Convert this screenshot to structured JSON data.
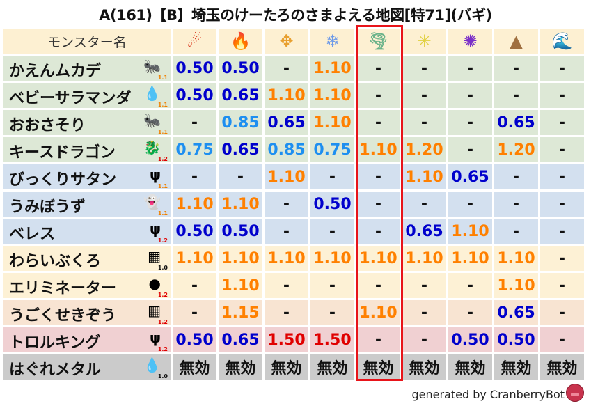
{
  "title": "A(161)【B】埼玉のけーたろのさまよえる地図[特71](バギ)",
  "header": {
    "name_col": "モンスター名",
    "elements": [
      {
        "icon": "fire-ball-icon",
        "glyph": "☄",
        "color": "#d8341a"
      },
      {
        "icon": "flame-icon",
        "glyph": "🔥",
        "color": "#e8561c"
      },
      {
        "icon": "explosion-icon",
        "glyph": "✥",
        "color": "#e8a030"
      },
      {
        "icon": "ice-icon",
        "glyph": "❄",
        "color": "#6f9be8"
      },
      {
        "icon": "tornado-icon",
        "glyph": "🌪",
        "color": "#6bb38a"
      },
      {
        "icon": "lightning-icon",
        "glyph": "✳",
        "color": "#e0d040"
      },
      {
        "icon": "darkness-icon",
        "glyph": "✺",
        "color": "#7a2ec8"
      },
      {
        "icon": "earth-icon",
        "glyph": "▲",
        "color": "#a07040"
      },
      {
        "icon": "water-icon",
        "glyph": "🌊",
        "color": "#2a8ad8"
      }
    ]
  },
  "highlight_column": "tornado-icon",
  "colors": {
    "low": "#0000cc",
    "mid": "#1e8ff0",
    "high": "#ff8000",
    "very_high": "#e00000",
    "none": "#111111"
  },
  "rows": [
    {
      "name": "かえんムカデ",
      "icon": "insect-icon",
      "glyph": "🐜",
      "ver": "1.1",
      "bg": "#dde8d6",
      "values": [
        "0.50",
        "0.50",
        "-",
        "1.10",
        "-",
        "-",
        "-",
        "-",
        "-"
      ]
    },
    {
      "name": "ベビーサラマンダ",
      "icon": "water-drop-icon",
      "glyph": "💧",
      "ver": "1.1",
      "bg": "#dde8d6",
      "values": [
        "0.50",
        "0.65",
        "1.10",
        "1.10",
        "-",
        "-",
        "-",
        "-",
        "-"
      ]
    },
    {
      "name": "おおさそり",
      "icon": "insect-icon",
      "glyph": "🐜",
      "ver": "1.1",
      "bg": "#dde8d6",
      "values": [
        "-",
        "0.85",
        "0.65",
        "1.10",
        "-",
        "-",
        "-",
        "0.65",
        "-"
      ]
    },
    {
      "name": "キースドラゴン",
      "icon": "dragon-icon",
      "glyph": "🐉",
      "ver": "1.2",
      "bg": "#dde8d6",
      "values": [
        "0.75",
        "0.65",
        "0.85",
        "0.75",
        "1.10",
        "1.20",
        "-",
        "1.20",
        "-"
      ]
    },
    {
      "name": "びっくりサタン",
      "icon": "demon-trident-icon",
      "glyph": "ψ",
      "ver": "1.1",
      "bg": "#d3e0ef",
      "values": [
        "-",
        "-",
        "1.10",
        "-",
        "-",
        "1.10",
        "0.65",
        "-",
        "-"
      ]
    },
    {
      "name": "うみぼうず",
      "icon": "ghost-icon",
      "glyph": "👻",
      "ver": "1.1",
      "bg": "#d3e0ef",
      "values": [
        "1.10",
        "1.10",
        "-",
        "0.50",
        "-",
        "-",
        "-",
        "-",
        "-"
      ]
    },
    {
      "name": "ベレス",
      "icon": "demon-trident-icon",
      "glyph": "ψ",
      "ver": "1.2",
      "bg": "#d3e0ef",
      "values": [
        "0.50",
        "0.50",
        "-",
        "-",
        "-",
        "0.65",
        "1.10",
        "-",
        "-"
      ]
    },
    {
      "name": "わらいぶくろ",
      "icon": "brick-icon",
      "glyph": "▦",
      "ver": "1.0",
      "bg": "#fdf1d5",
      "values": [
        "1.10",
        "1.10",
        "1.10",
        "1.10",
        "1.10",
        "1.10",
        "1.10",
        "1.10",
        "-"
      ]
    },
    {
      "name": "エリミネーター",
      "icon": "slime-shadow-icon",
      "glyph": "●",
      "ver": "1.2",
      "bg": "#fdf1d5",
      "values": [
        "-",
        "1.10",
        "-",
        "-",
        "-",
        "-",
        "-",
        "1.10",
        "-"
      ]
    },
    {
      "name": "うごくせきぞう",
      "icon": "brick-icon",
      "glyph": "▦",
      "ver": "1.2",
      "bg": "#f8e4d2",
      "values": [
        "-",
        "1.15",
        "-",
        "-",
        "1.10",
        "-",
        "-",
        "0.65",
        "-"
      ]
    },
    {
      "name": "トロルキング",
      "icon": "demon-trident-icon",
      "glyph": "ψ",
      "ver": "1.2",
      "bg": "#f0d0d2",
      "values": [
        "0.50",
        "0.65",
        "1.50",
        "1.50",
        "-",
        "-",
        "0.50",
        "0.50",
        "-"
      ]
    },
    {
      "name": "はぐれメタル",
      "icon": "slime-icon",
      "glyph": "💧",
      "ver": "1.0",
      "bg": "#cbcbcb",
      "values": [
        "無効",
        "無効",
        "無効",
        "無効",
        "無効",
        "無効",
        "無効",
        "無効",
        "無効"
      ]
    }
  ],
  "footer": "generated by CranberryBot"
}
